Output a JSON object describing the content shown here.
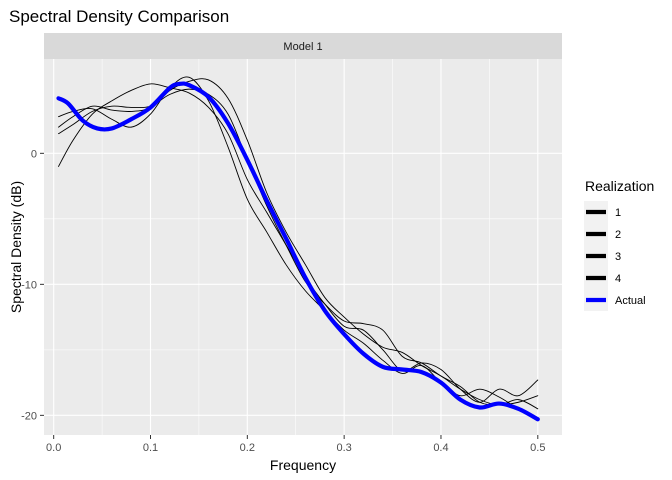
{
  "chart_data": {
    "type": "line",
    "title": "Spectral Density Comparison",
    "facet_label": "Model 1",
    "xlabel": "Frequency",
    "ylabel": "Spectral Density (dB)",
    "xlim": [
      -0.01,
      0.525
    ],
    "ylim": [
      -21.5,
      7.2
    ],
    "x_ticks": [
      0.0,
      0.1,
      0.2,
      0.3,
      0.4,
      0.5
    ],
    "x_tick_labels": [
      "0.0",
      "0.1",
      "0.2",
      "0.3",
      "0.4",
      "0.5"
    ],
    "y_ticks": [
      0,
      -10,
      -20
    ],
    "y_tick_labels": [
      "0",
      "-10",
      "-20"
    ],
    "grid": true,
    "legend": {
      "title": "Realization",
      "position": "right",
      "entries": [
        "1",
        "2",
        "3",
        "4",
        "Actual"
      ]
    },
    "colors": {
      "realization": "#000000",
      "actual": "#0000ff",
      "panel_background": "#ebebeb",
      "strip_background": "#d9d9d9",
      "grid": "#ffffff"
    },
    "series": [
      {
        "name": "1",
        "x": [
          0.005,
          0.02,
          0.04,
          0.06,
          0.08,
          0.1,
          0.12,
          0.14,
          0.16,
          0.18,
          0.2,
          0.22,
          0.24,
          0.26,
          0.28,
          0.3,
          0.32,
          0.34,
          0.36,
          0.38,
          0.4,
          0.42,
          0.44,
          0.46,
          0.48,
          0.5
        ],
        "y": [
          -1.0,
          1.0,
          3.0,
          4.0,
          4.8,
          5.3,
          5.0,
          4.6,
          3.5,
          1.5,
          -2.0,
          -4.5,
          -7.0,
          -9.5,
          -11.5,
          -13.2,
          -13.5,
          -15.0,
          -16.6,
          -16.0,
          -16.5,
          -18.0,
          -19.0,
          -18.0,
          -18.5,
          -17.3
        ]
      },
      {
        "name": "2",
        "x": [
          0.005,
          0.02,
          0.04,
          0.06,
          0.08,
          0.1,
          0.12,
          0.14,
          0.16,
          0.18,
          0.2,
          0.22,
          0.24,
          0.26,
          0.28,
          0.3,
          0.32,
          0.34,
          0.36,
          0.38,
          0.4,
          0.42,
          0.44,
          0.46,
          0.48,
          0.5
        ],
        "y": [
          2.0,
          2.8,
          3.6,
          3.3,
          3.2,
          3.5,
          4.8,
          5.5,
          5.6,
          4.2,
          1.0,
          -3.0,
          -6.0,
          -8.5,
          -11.0,
          -12.5,
          -13.8,
          -14.8,
          -15.2,
          -16.2,
          -17.0,
          -18.0,
          -18.8,
          -19.2,
          -18.8,
          -19.5
        ]
      },
      {
        "name": "3",
        "x": [
          0.005,
          0.02,
          0.04,
          0.06,
          0.08,
          0.1,
          0.12,
          0.14,
          0.16,
          0.18,
          0.2,
          0.22,
          0.24,
          0.26,
          0.28,
          0.3,
          0.32,
          0.34,
          0.36,
          0.38,
          0.4,
          0.42,
          0.44,
          0.46,
          0.48,
          0.5
        ],
        "y": [
          2.8,
          3.2,
          3.4,
          2.6,
          2.0,
          3.0,
          5.0,
          5.8,
          4.0,
          0.5,
          -3.5,
          -6.0,
          -8.5,
          -10.5,
          -12.0,
          -13.5,
          -14.5,
          -15.8,
          -16.8,
          -16.2,
          -17.5,
          -18.5,
          -18.0,
          -18.6,
          -19.5,
          -20.2
        ]
      },
      {
        "name": "4",
        "x": [
          0.005,
          0.02,
          0.04,
          0.06,
          0.08,
          0.1,
          0.12,
          0.14,
          0.16,
          0.18,
          0.2,
          0.22,
          0.24,
          0.26,
          0.28,
          0.3,
          0.32,
          0.34,
          0.36,
          0.38,
          0.4,
          0.42,
          0.44,
          0.46,
          0.48,
          0.5
        ],
        "y": [
          1.5,
          2.2,
          3.2,
          3.6,
          3.5,
          3.6,
          4.5,
          4.9,
          4.5,
          3.0,
          -0.5,
          -4.0,
          -7.0,
          -9.8,
          -11.5,
          -12.8,
          -13.0,
          -13.5,
          -15.5,
          -16.0,
          -17.0,
          -17.8,
          -19.0,
          -19.2,
          -19.0,
          -18.5
        ]
      },
      {
        "name": "Actual",
        "x": [
          0.005,
          0.015,
          0.03,
          0.045,
          0.06,
          0.08,
          0.1,
          0.12,
          0.13,
          0.14,
          0.16,
          0.18,
          0.2,
          0.22,
          0.24,
          0.26,
          0.28,
          0.3,
          0.32,
          0.34,
          0.36,
          0.38,
          0.4,
          0.42,
          0.44,
          0.46,
          0.48,
          0.5
        ],
        "y": [
          4.2,
          3.8,
          2.5,
          1.9,
          1.9,
          2.6,
          3.5,
          5.0,
          5.3,
          5.2,
          4.3,
          2.3,
          -0.5,
          -3.6,
          -6.5,
          -9.5,
          -12.0,
          -13.8,
          -15.3,
          -16.3,
          -16.5,
          -16.7,
          -17.5,
          -18.8,
          -19.4,
          -19.1,
          -19.5,
          -20.3
        ]
      }
    ]
  }
}
